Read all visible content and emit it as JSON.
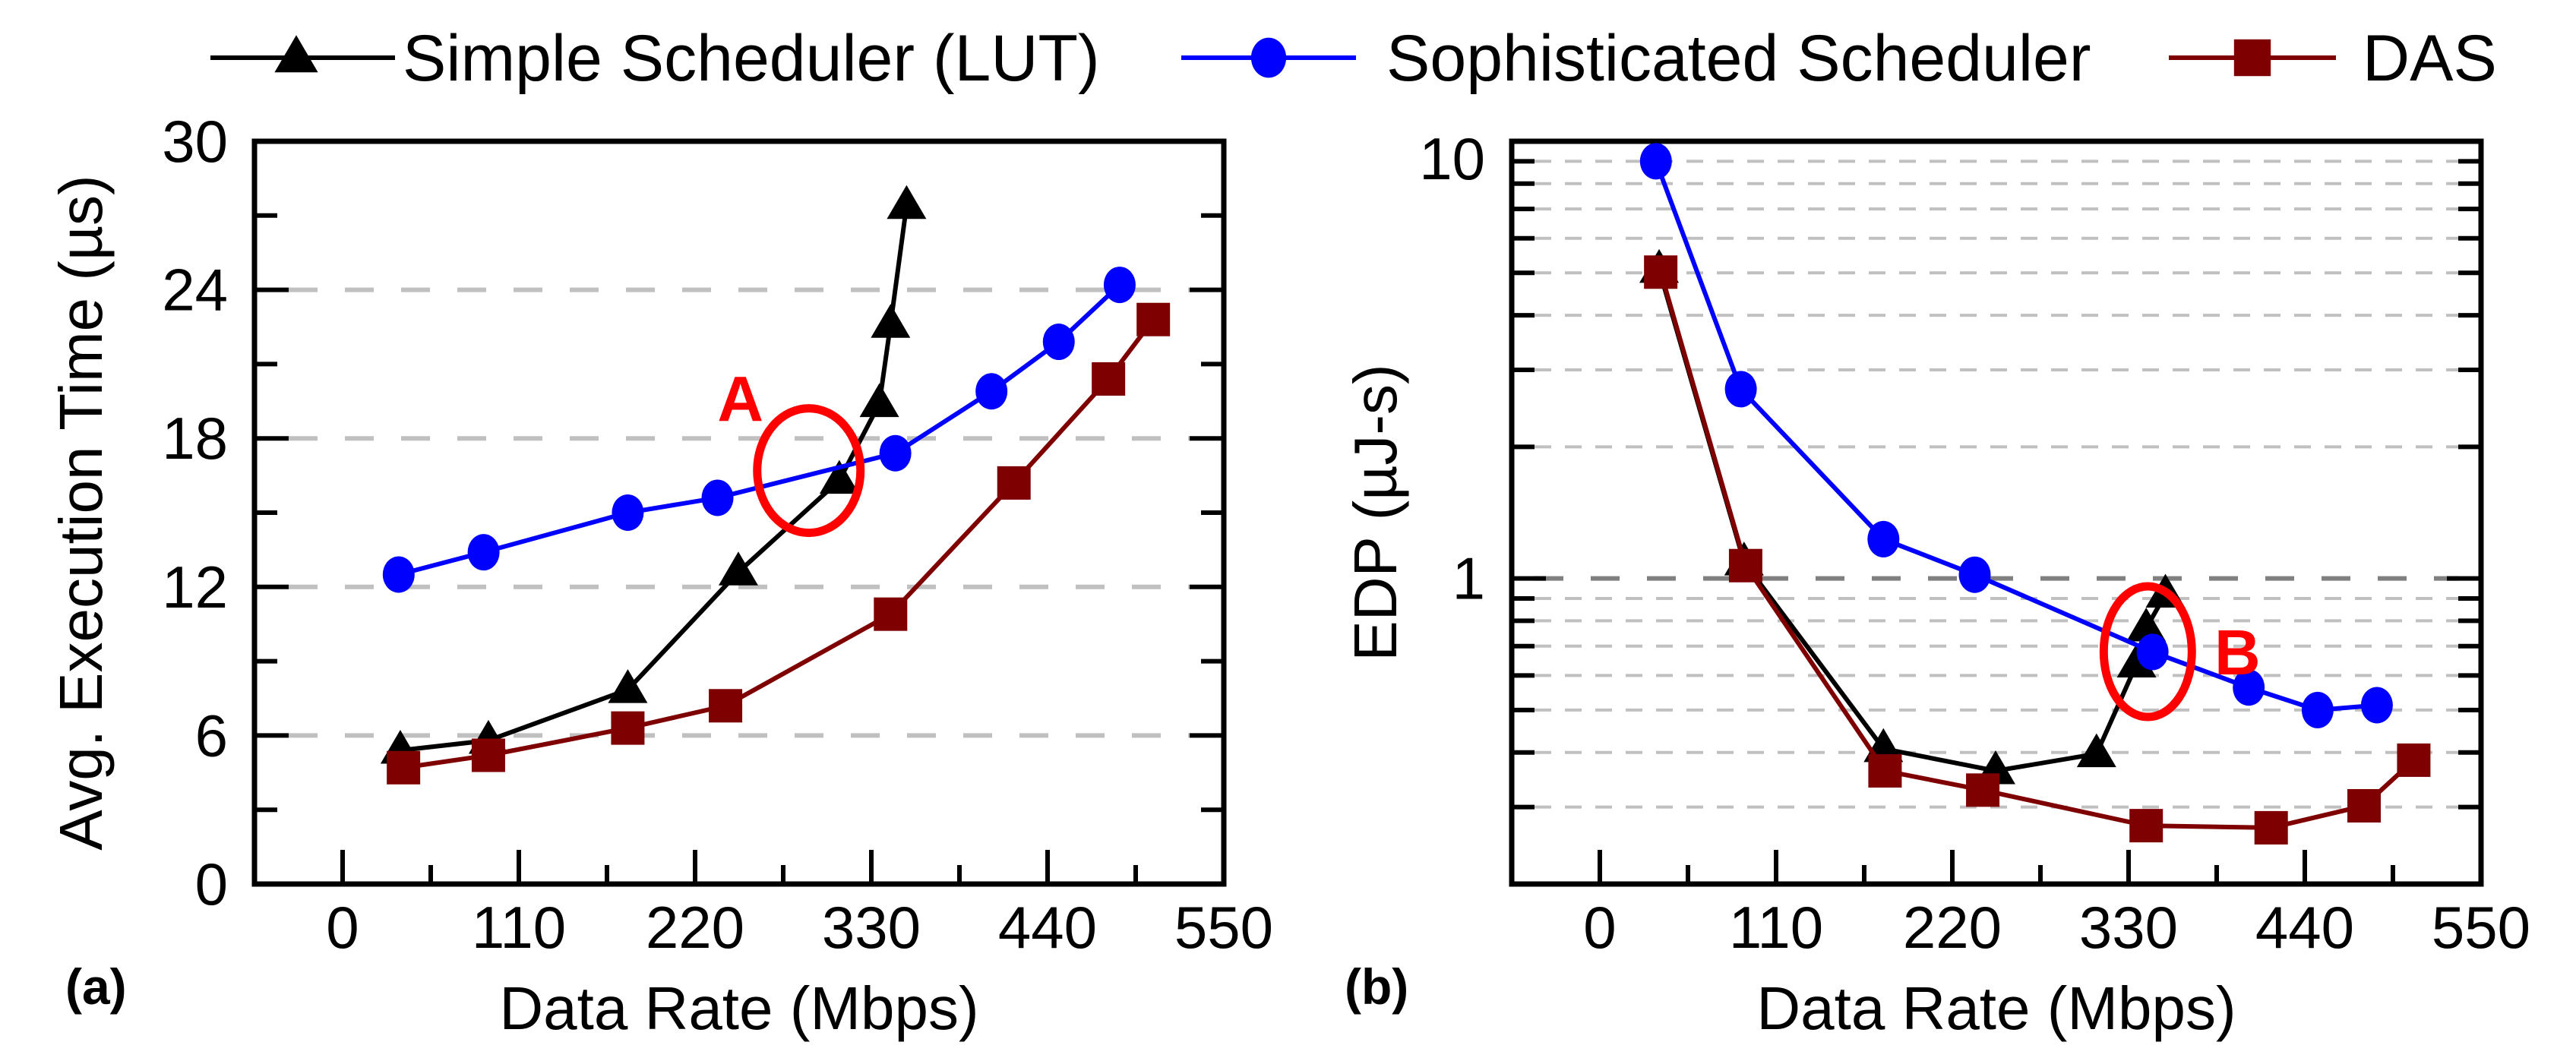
{
  "legend": {
    "placement": "top",
    "items": [
      {
        "label": "Simple Scheduler (LUT)",
        "color": "#000000",
        "marker": "triangle"
      },
      {
        "label": "Sophisticated Scheduler",
        "color": "#0000ff",
        "marker": "circle"
      },
      {
        "label": "DAS",
        "color": "#7f0000",
        "marker": "square"
      }
    ]
  },
  "chart_data": [
    {
      "type": "line",
      "panel_label": "(a)",
      "xlabel": "Data Rate (Mbps)",
      "ylabel": "Avg. Execution Time (µs)",
      "xlim": [
        -55,
        550
      ],
      "ylim": [
        0,
        30
      ],
      "yscale": "linear",
      "xticks": [
        "0",
        "110",
        "220",
        "330",
        "440",
        "550"
      ],
      "yticks": [
        "0",
        "6",
        "12",
        "18",
        "24",
        "30"
      ],
      "grid": "horizontal dashed at 6, 12, 18, 24",
      "series": [
        {
          "name": "Simple Scheduler (LUT)",
          "x": [
            36,
            91,
            178,
            247,
            310,
            335,
            342,
            352
          ],
          "y": [
            5.4,
            5.8,
            7.85,
            12.6,
            16.3,
            19.4,
            22.6,
            27.4
          ]
        },
        {
          "name": "Sophisticated Scheduler",
          "x": [
            35,
            88,
            178,
            234,
            345,
            405,
            447,
            485
          ],
          "y": [
            12.5,
            13.4,
            15.0,
            15.6,
            17.4,
            19.9,
            21.9,
            24.2
          ]
        },
        {
          "name": "DAS",
          "x": [
            38,
            91,
            178,
            239,
            342,
            419,
            478,
            506
          ],
          "y": [
            4.7,
            5.2,
            6.3,
            7.2,
            10.9,
            16.2,
            20.4,
            22.8
          ]
        }
      ],
      "annotation": {
        "text": "A",
        "x": 291,
        "y": 16.7,
        "color": "#ff0000"
      }
    },
    {
      "type": "line",
      "panel_label": "(b)",
      "xlabel": "Data Rate (Mbps)",
      "ylabel": "EDP (µJ-s)",
      "xlim": [
        -55,
        550
      ],
      "ylim": [
        0.2,
        10
      ],
      "yscale": "log",
      "xticks": [
        "0",
        "110",
        "220",
        "330",
        "440",
        "550"
      ],
      "yticks": [
        "1",
        "10"
      ],
      "grid": "horizontal dashed at each log minor tick",
      "series": [
        {
          "name": "Simple Scheduler (LUT)",
          "x": [
            37,
            90,
            177,
            247,
            310,
            335,
            341,
            353
          ],
          "y": [
            5.09,
            1.09,
            0.408,
            0.363,
            0.397,
            0.637,
            0.77,
            0.92
          ]
        },
        {
          "name": "Sophisticated Scheduler",
          "x": [
            35,
            88,
            177,
            234,
            345,
            405,
            448,
            485
          ],
          "y": [
            9.0,
            2.71,
            1.23,
            1.02,
            0.679,
            0.563,
            0.5,
            0.513
          ]
        },
        {
          "name": "DAS",
          "x": [
            38,
            91,
            178,
            239,
            341,
            419,
            477,
            508
          ],
          "y": [
            5.02,
            1.07,
            0.363,
            0.328,
            0.272,
            0.269,
            0.302,
            0.384
          ]
        }
      ],
      "annotation": {
        "text": "B",
        "x": 342,
        "y": 0.68,
        "color": "#ff0000"
      }
    }
  ]
}
